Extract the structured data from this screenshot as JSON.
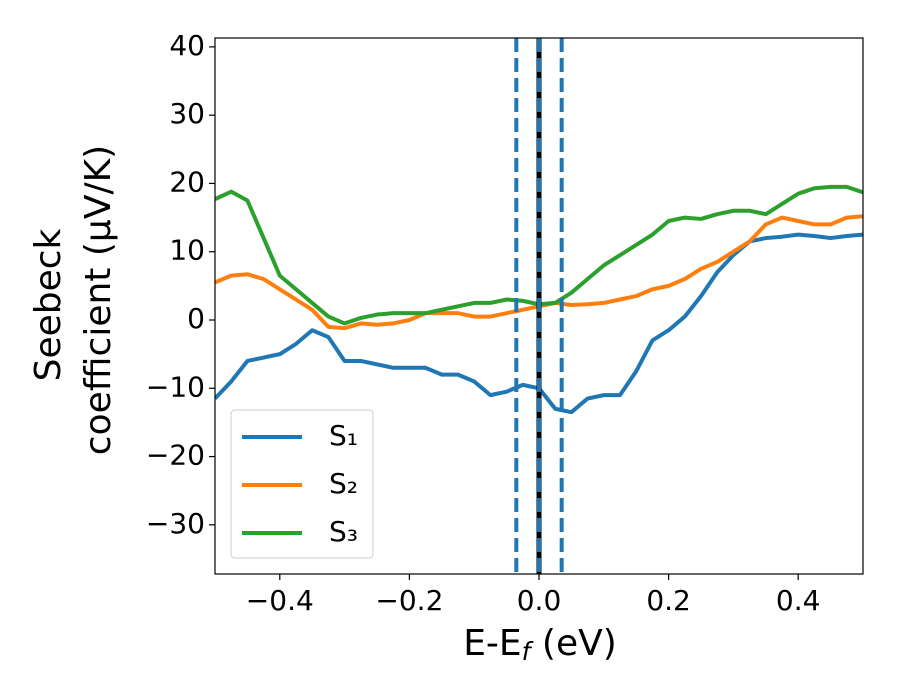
{
  "chart_data": {
    "type": "line",
    "xlabel": [
      "E-E",
      "f",
      " (eV)"
    ],
    "ylabel": [
      "Seebeck",
      "coefficient  (μV/K)"
    ],
    "x": [
      -0.5,
      -0.475,
      -0.45,
      -0.425,
      -0.4,
      -0.375,
      -0.35,
      -0.325,
      -0.3,
      -0.275,
      -0.25,
      -0.225,
      -0.2,
      -0.175,
      -0.15,
      -0.125,
      -0.1,
      -0.075,
      -0.05,
      -0.025,
      0,
      0.025,
      0.05,
      0.075,
      0.1,
      0.125,
      0.15,
      0.175,
      0.2,
      0.225,
      0.25,
      0.275,
      0.3,
      0.325,
      0.35,
      0.375,
      0.4,
      0.425,
      0.45,
      0.475,
      0.5
    ],
    "series": [
      {
        "name": "S₁",
        "color": "#1f77b4",
        "values": [
          -11.5,
          -9,
          -6,
          -5.5,
          -5,
          -3.5,
          -1.5,
          -2.5,
          -6,
          -6,
          -6.5,
          -7,
          -7,
          -7,
          -8,
          -8,
          -9,
          -11,
          -10.5,
          -9.5,
          -10,
          -13,
          -13.5,
          -11.5,
          -11,
          -11,
          -7.5,
          -3,
          -1.5,
          0.5,
          3.5,
          7,
          9.5,
          11.5,
          12,
          12.2,
          12.5,
          12.3,
          12,
          12.3,
          12.5
        ]
      },
      {
        "name": "S₂",
        "color": "#ff7f0e",
        "values": [
          5.5,
          6.5,
          6.7,
          6,
          4.5,
          3,
          1.5,
          -1,
          -1.2,
          -0.5,
          -0.7,
          -0.5,
          0,
          1,
          1,
          1,
          0.5,
          0.5,
          1,
          1.5,
          2,
          2.5,
          2.2,
          2.3,
          2.5,
          3,
          3.5,
          4.5,
          5,
          6,
          7.5,
          8.5,
          10,
          11.5,
          14,
          15,
          14.5,
          14,
          14,
          15,
          15.2
        ]
      },
      {
        "name": "S₃",
        "color": "#2ca02c",
        "values": [
          17.7,
          18.8,
          17.5,
          12,
          6.5,
          4.5,
          2.5,
          0.5,
          -0.5,
          0.3,
          0.8,
          1,
          1,
          1,
          1.5,
          2,
          2.5,
          2.5,
          3,
          2.8,
          2.3,
          2.5,
          4,
          6,
          8,
          9.5,
          11,
          12.5,
          14.5,
          15,
          14.8,
          15.5,
          16,
          16,
          15.5,
          17,
          18.5,
          19.3,
          19.5,
          19.5,
          18.7
        ]
      }
    ],
    "vlines": [
      {
        "x": -0.035,
        "color": "#1f77b4",
        "style": "dashed"
      },
      {
        "x": 0,
        "color": "#000000",
        "style": "solid"
      },
      {
        "x": 0,
        "color": "#1f77b4",
        "style": "dashed"
      },
      {
        "x": 0.035,
        "color": "#1f77b4",
        "style": "dashed"
      }
    ],
    "xlim": [
      -0.5,
      0.5
    ],
    "ylim": [
      -37.2,
      41.3
    ],
    "xticks": [
      {
        "value": -0.4,
        "label": "−0.4"
      },
      {
        "value": -0.2,
        "label": "−0.2"
      },
      {
        "value": 0,
        "label": "0.0"
      },
      {
        "value": 0.2,
        "label": "0.2"
      },
      {
        "value": 0.4,
        "label": "0.4"
      }
    ],
    "yticks": [
      {
        "value": -30,
        "label": "−30"
      },
      {
        "value": -20,
        "label": "−20"
      },
      {
        "value": -10,
        "label": "−10"
      },
      0,
      10,
      20,
      30,
      40
    ],
    "legend": "lower left",
    "grid": false
  }
}
